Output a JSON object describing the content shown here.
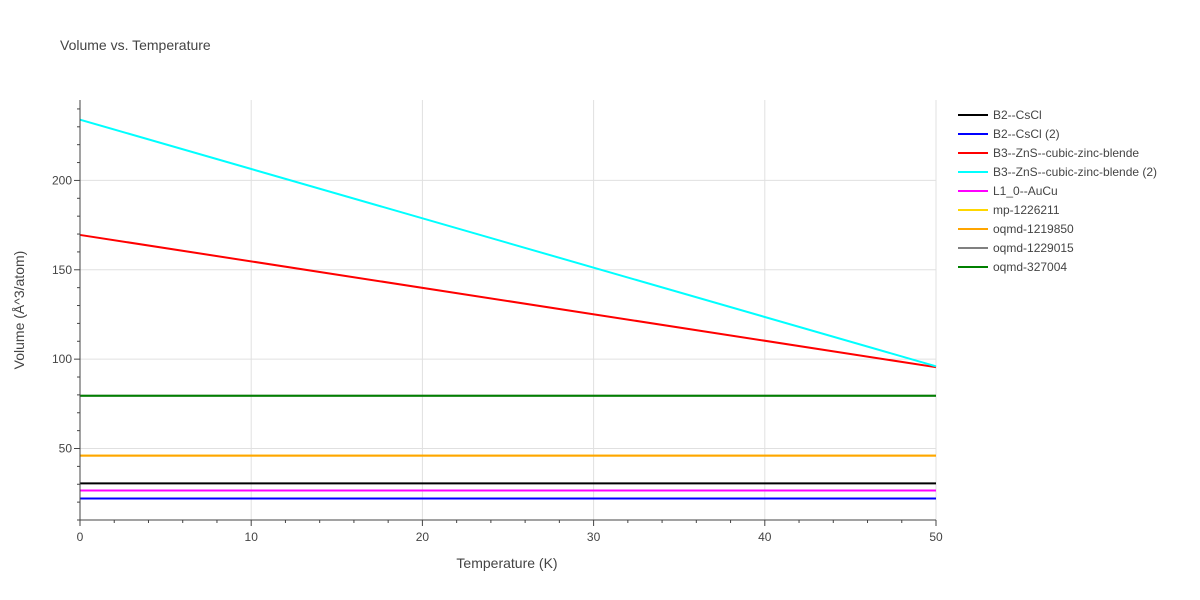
{
  "chart_data": {
    "type": "line",
    "title": "Volume vs. Temperature",
    "xlabel": "Temperature (K)",
    "ylabel": "Volume (Å^3/atom)",
    "xlim": [
      0,
      50
    ],
    "ylim": [
      10,
      245
    ],
    "xticks": [
      0,
      10,
      20,
      30,
      40,
      50
    ],
    "yticks": [
      50,
      100,
      150,
      200
    ],
    "grid": true,
    "legend_position": "right",
    "x": [
      0,
      50
    ],
    "series": [
      {
        "name": "B2--CsCl",
        "color": "#000000",
        "values": [
          30.5,
          30.5
        ]
      },
      {
        "name": "B2--CsCl (2)",
        "color": "#0000ff",
        "values": [
          22.0,
          22.0
        ]
      },
      {
        "name": "B3--ZnS--cubic-zinc-blende",
        "color": "#ff0000",
        "values": [
          169.5,
          95.5
        ]
      },
      {
        "name": "B3--ZnS--cubic-zinc-blende (2)",
        "color": "#00ffff",
        "values": [
          234.0,
          96.0
        ]
      },
      {
        "name": "L1_0--AuCu",
        "color": "#ff00ff",
        "values": [
          26.5,
          26.5
        ]
      },
      {
        "name": "mp-1226211",
        "color": "#ffd700",
        "values": [
          46.0,
          46.0
        ]
      },
      {
        "name": "oqmd-1219850",
        "color": "#ffa500",
        "values": [
          46.0,
          46.0
        ]
      },
      {
        "name": "oqmd-1229015",
        "color": "#808080",
        "values": [
          79.5,
          79.5
        ]
      },
      {
        "name": "oqmd-327004",
        "color": "#008000",
        "values": [
          79.5,
          79.5
        ]
      }
    ]
  }
}
